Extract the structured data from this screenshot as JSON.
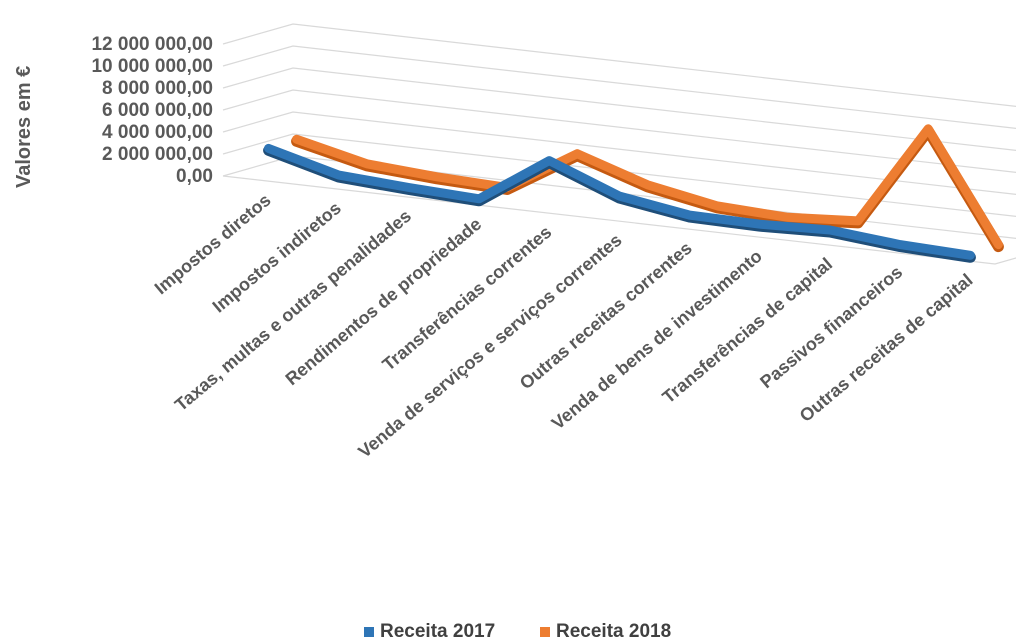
{
  "chart_data": {
    "type": "line",
    "style": "3d-line",
    "ylabel": "Valores em €",
    "ylim": [
      0,
      12000000
    ],
    "yticks": [
      "0,00",
      "2 000 000,00",
      "4 000 000,00",
      "6 000 000,00",
      "8 000 000,00",
      "10 000 000,00",
      "12 000 000,00"
    ],
    "grid": true,
    "legend_position": "bottom",
    "categories": [
      "Impostos diretos",
      "Impostos indiretos",
      "Taxas, multas e outras penalidades",
      "Rendimentos de propriedade",
      "Transferências correntes",
      "Venda de serviços e serviços correntes",
      "Outras receitas correntes",
      "Venda de bens de investimento",
      "Transferências de capital",
      "Passivos financeiros",
      "Outras receitas de capital"
    ],
    "series": [
      {
        "name": "Receita 2017",
        "color": "#2e75b6",
        "values": [
          2600000,
          900000,
          500000,
          200000,
          4400000,
          1900000,
          900000,
          800000,
          1000000,
          400000,
          150000
        ]
      },
      {
        "name": "Receita 2018",
        "color": "#ed7d31",
        "values": [
          2700000,
          1200000,
          750000,
          500000,
          4300000,
          2200000,
          1000000,
          700000,
          1100000,
          10200000,
          400000
        ]
      }
    ]
  }
}
